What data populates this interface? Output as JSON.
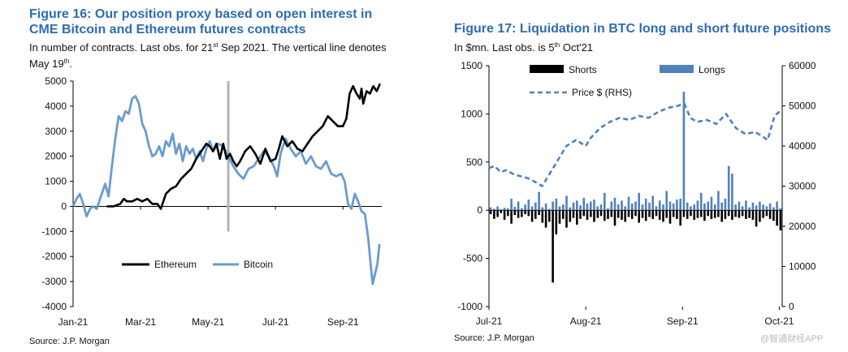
{
  "left": {
    "title": "Figure 16: Our position proxy based on open interest in CME Bitcoin and Ethereum futures contracts",
    "subtitle": {
      "pre": "In number of contracts. Last obs. for 21",
      "sup1": "st",
      "mid": " Sep 2021. The vertical line denotes May 19",
      "sup2": "th",
      "post": "."
    },
    "source": "Source: J.P. Morgan"
  },
  "right": {
    "title": "Figure 17: Liquidation in BTC long and short future positions",
    "subtitle": {
      "pre": "In $mn. Last obs. is 5",
      "sup": "th",
      "post": " Oct'21"
    },
    "source": "Source: J.P. Morgan"
  },
  "watermark": "@智通财经APP",
  "colors": {
    "title": "#2f6bb3",
    "bitcoin": "#6a9bd0",
    "ethereum": "#000000",
    "longs": "#4f81bd",
    "shorts": "#000000",
    "price": "#4f81bd",
    "vline": "#b3b3b3"
  },
  "chart_data": [
    {
      "type": "line",
      "title": "Figure 16: Our position proxy based on open interest in CME Bitcoin and Ethereum futures contracts",
      "ylim": [
        -4000,
        5000
      ],
      "yticks": [
        5000,
        4000,
        3000,
        2000,
        1000,
        0,
        -1000,
        -2000,
        -3000,
        -4000
      ],
      "xlim": [
        0,
        9.15
      ],
      "xticks": [
        {
          "label": "Jan-21",
          "x": 0
        },
        {
          "label": "Mar-21",
          "x": 2
        },
        {
          "label": "May-21",
          "x": 4
        },
        {
          "label": "Jul-21",
          "x": 6
        },
        {
          "label": "Sep-21",
          "x": 8
        }
      ],
      "vline": {
        "x": 4.6,
        "label": "May 19th"
      },
      "legend": [
        "Ethereum",
        "Bitcoin"
      ],
      "series": [
        {
          "name": "Bitcoin",
          "color": "#6a9bd0",
          "points": [
            [
              0,
              0
            ],
            [
              0.1,
              300
            ],
            [
              0.2,
              500
            ],
            [
              0.3,
              100
            ],
            [
              0.4,
              -400
            ],
            [
              0.5,
              -100
            ],
            [
              0.6,
              0
            ],
            [
              0.7,
              -100
            ],
            [
              0.85,
              500
            ],
            [
              0.95,
              900
            ],
            [
              1.05,
              400
            ],
            [
              1.15,
              1600
            ],
            [
              1.25,
              2700
            ],
            [
              1.35,
              3600
            ],
            [
              1.45,
              3400
            ],
            [
              1.55,
              3800
            ],
            [
              1.65,
              3700
            ],
            [
              1.75,
              4300
            ],
            [
              1.85,
              4400
            ],
            [
              1.95,
              4100
            ],
            [
              2.05,
              3300
            ],
            [
              2.15,
              3000
            ],
            [
              2.25,
              2400
            ],
            [
              2.35,
              2000
            ],
            [
              2.45,
              2100
            ],
            [
              2.55,
              2400
            ],
            [
              2.65,
              2000
            ],
            [
              2.75,
              2600
            ],
            [
              2.85,
              2400
            ],
            [
              2.95,
              2900
            ],
            [
              3.05,
              2100
            ],
            [
              3.15,
              2500
            ],
            [
              3.25,
              1800
            ],
            [
              3.35,
              2400
            ],
            [
              3.45,
              2100
            ],
            [
              3.55,
              2300
            ],
            [
              3.65,
              1900
            ],
            [
              3.75,
              2200
            ],
            [
              3.85,
              1800
            ],
            [
              3.95,
              2300
            ],
            [
              4.05,
              2600
            ],
            [
              4.15,
              2200
            ],
            [
              4.3,
              2500
            ],
            [
              4.45,
              2400
            ],
            [
              4.6,
              2000
            ],
            [
              4.75,
              1600
            ],
            [
              4.9,
              1300
            ],
            [
              5.05,
              1100
            ],
            [
              5.2,
              1500
            ],
            [
              5.35,
              1600
            ],
            [
              5.5,
              1900
            ],
            [
              5.65,
              2200
            ],
            [
              5.8,
              2000
            ],
            [
              5.95,
              1600
            ],
            [
              6.05,
              1200
            ],
            [
              6.15,
              2100
            ],
            [
              6.3,
              2700
            ],
            [
              6.45,
              2300
            ],
            [
              6.6,
              2000
            ],
            [
              6.75,
              2200
            ],
            [
              6.9,
              1700
            ],
            [
              7.05,
              2000
            ],
            [
              7.2,
              1600
            ],
            [
              7.35,
              1500
            ],
            [
              7.5,
              1800
            ],
            [
              7.65,
              1300
            ],
            [
              7.8,
              1200
            ],
            [
              7.95,
              1300
            ],
            [
              8.05,
              1000
            ],
            [
              8.15,
              100
            ],
            [
              8.25,
              -100
            ],
            [
              8.35,
              500
            ],
            [
              8.45,
              200
            ],
            [
              8.55,
              -200
            ],
            [
              8.65,
              -300
            ],
            [
              8.75,
              -1300
            ],
            [
              8.82,
              -2300
            ],
            [
              8.88,
              -3100
            ],
            [
              8.95,
              -2700
            ],
            [
              9.02,
              -2300
            ],
            [
              9.08,
              -1500
            ]
          ]
        },
        {
          "name": "Ethereum",
          "color": "#000000",
          "points": [
            [
              1.0,
              0
            ],
            [
              1.2,
              0
            ],
            [
              1.4,
              100
            ],
            [
              1.5,
              300
            ],
            [
              1.6,
              200
            ],
            [
              1.75,
              200
            ],
            [
              1.9,
              300
            ],
            [
              2.05,
              200
            ],
            [
              2.2,
              300
            ],
            [
              2.35,
              100
            ],
            [
              2.5,
              100
            ],
            [
              2.6,
              -100
            ],
            [
              2.75,
              500
            ],
            [
              2.9,
              700
            ],
            [
              3.05,
              800
            ],
            [
              3.2,
              1100
            ],
            [
              3.35,
              1300
            ],
            [
              3.5,
              1500
            ],
            [
              3.65,
              1900
            ],
            [
              3.8,
              2200
            ],
            [
              3.95,
              2500
            ],
            [
              4.05,
              2400
            ],
            [
              4.15,
              2200
            ],
            [
              4.25,
              2500
            ],
            [
              4.35,
              1900
            ],
            [
              4.45,
              2500
            ],
            [
              4.55,
              1900
            ],
            [
              4.65,
              2100
            ],
            [
              4.75,
              1800
            ],
            [
              4.85,
              1600
            ],
            [
              4.95,
              1800
            ],
            [
              5.1,
              2200
            ],
            [
              5.25,
              2400
            ],
            [
              5.4,
              2100
            ],
            [
              5.55,
              1700
            ],
            [
              5.7,
              2300
            ],
            [
              5.85,
              1800
            ],
            [
              6.0,
              1900
            ],
            [
              6.1,
              2300
            ],
            [
              6.2,
              2800
            ],
            [
              6.35,
              2400
            ],
            [
              6.5,
              2600
            ],
            [
              6.65,
              2300
            ],
            [
              6.8,
              2200
            ],
            [
              6.95,
              2500
            ],
            [
              7.1,
              2800
            ],
            [
              7.25,
              3000
            ],
            [
              7.4,
              3200
            ],
            [
              7.55,
              3600
            ],
            [
              7.7,
              3400
            ],
            [
              7.85,
              3200
            ],
            [
              8.0,
              3200
            ],
            [
              8.1,
              3500
            ],
            [
              8.2,
              4500
            ],
            [
              8.3,
              4800
            ],
            [
              8.4,
              4500
            ],
            [
              8.5,
              4300
            ],
            [
              8.55,
              4700
            ],
            [
              8.6,
              4100
            ],
            [
              8.7,
              4600
            ],
            [
              8.8,
              4500
            ],
            [
              8.9,
              4800
            ],
            [
              9.0,
              4600
            ],
            [
              9.1,
              4900
            ]
          ]
        }
      ]
    },
    {
      "type": "bar",
      "title": "Figure 17: Liquidation in BTC long and short future positions",
      "ylim": [
        -1000,
        1500
      ],
      "yticks": [
        1500,
        1000,
        500,
        0,
        -500,
        -1000
      ],
      "y2lim": [
        0,
        60000
      ],
      "y2ticks": [
        60000,
        50000,
        40000,
        30000,
        20000,
        10000,
        0
      ],
      "ylabel": "",
      "y2label": "",
      "xlim": [
        0,
        3.03
      ],
      "xticks": [
        {
          "label": "Jul-21",
          "x": 0
        },
        {
          "label": "Aug-21",
          "x": 1
        },
        {
          "label": "Sep-21",
          "x": 2
        },
        {
          "label": "Oct-21",
          "x": 3
        }
      ],
      "legend": [
        "Shorts",
        "Longs",
        "Price $ (RHS)"
      ],
      "longs": [
        30,
        15,
        40,
        10,
        25,
        20,
        120,
        35,
        90,
        20,
        60,
        110,
        40,
        80,
        190,
        30,
        70,
        15,
        90,
        120,
        40,
        60,
        150,
        30,
        80,
        100,
        50,
        130,
        70,
        90,
        110,
        40,
        60,
        180,
        20,
        90,
        130,
        60,
        100,
        40,
        140,
        70,
        90,
        180,
        60,
        120,
        80,
        150,
        40,
        100,
        60,
        200,
        90,
        70,
        110,
        120,
        1230,
        80,
        40,
        60,
        100,
        180,
        70,
        90,
        140,
        60,
        200,
        80,
        120,
        460,
        380,
        60,
        90,
        40,
        100,
        30,
        80,
        50,
        90,
        60,
        40,
        70,
        30,
        90,
        20
      ],
      "shorts": [
        -40,
        -90,
        -70,
        -30,
        -100,
        -60,
        -140,
        -50,
        -80,
        -70,
        -40,
        -60,
        -120,
        -90,
        -50,
        -130,
        -180,
        -120,
        -750,
        -250,
        -140,
        -90,
        -180,
        -120,
        -80,
        -150,
        -90,
        -60,
        -100,
        -70,
        -120,
        -80,
        -60,
        -110,
        -90,
        -70,
        -160,
        -80,
        -100,
        -120,
        -70,
        -90,
        -60,
        -130,
        -80,
        -110,
        -70,
        -90,
        -60,
        -100,
        -120,
        -80,
        -140,
        -70,
        -90,
        -160,
        -70,
        -90,
        -60,
        -100,
        -80,
        -70,
        -110,
        -60,
        -90,
        -80,
        -70,
        -120,
        -90,
        -60,
        -100,
        -70,
        -80,
        -60,
        -90,
        -80,
        -100,
        -170,
        -120,
        -80,
        -60,
        -90,
        -110,
        -160,
        -210
      ],
      "price": [
        [
          0,
          34500
        ],
        [
          0.06,
          35000
        ],
        [
          0.12,
          33500
        ],
        [
          0.18,
          34000
        ],
        [
          0.25,
          33000
        ],
        [
          0.32,
          32500
        ],
        [
          0.4,
          32000
        ],
        [
          0.48,
          31000
        ],
        [
          0.55,
          30000
        ],
        [
          0.6,
          32000
        ],
        [
          0.7,
          36000
        ],
        [
          0.8,
          40000
        ],
        [
          0.9,
          41500
        ],
        [
          1.0,
          40000
        ],
        [
          1.05,
          42000
        ],
        [
          1.15,
          44500
        ],
        [
          1.25,
          46000
        ],
        [
          1.35,
          47000
        ],
        [
          1.45,
          46500
        ],
        [
          1.55,
          47500
        ],
        [
          1.65,
          47000
        ],
        [
          1.75,
          48500
        ],
        [
          1.85,
          49500
        ],
        [
          1.95,
          50000
        ],
        [
          2.02,
          50500
        ],
        [
          2.08,
          47000
        ],
        [
          2.15,
          46000
        ],
        [
          2.25,
          46500
        ],
        [
          2.35,
          45500
        ],
        [
          2.45,
          48000
        ],
        [
          2.55,
          44500
        ],
        [
          2.65,
          43000
        ],
        [
          2.75,
          43500
        ],
        [
          2.82,
          42500
        ],
        [
          2.88,
          41500
        ],
        [
          2.95,
          47500
        ],
        [
          3.0,
          48500
        ],
        [
          3.03,
          49000
        ]
      ]
    }
  ]
}
